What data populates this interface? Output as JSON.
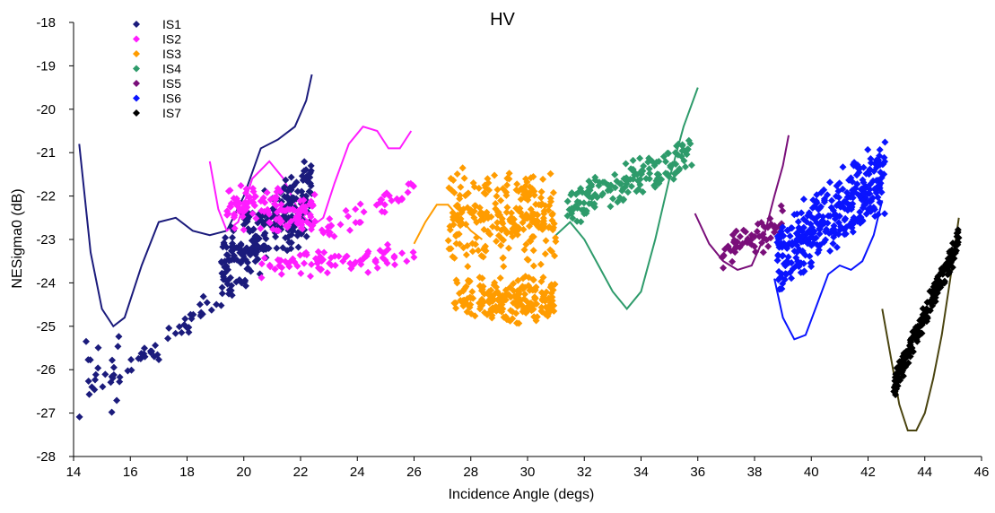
{
  "chart_data": {
    "type": "scatter",
    "title": "HV",
    "xlabel": "Incidence Angle (degs)",
    "ylabel": "NESigma0 (dB)",
    "xlim": [
      14,
      46
    ],
    "ylim": [
      -28,
      -18
    ],
    "xticks": [
      14,
      16,
      18,
      20,
      22,
      24,
      26,
      28,
      30,
      32,
      34,
      36,
      38,
      40,
      42,
      44,
      46
    ],
    "yticks": [
      -18,
      -19,
      -20,
      -21,
      -22,
      -23,
      -24,
      -25,
      -26,
      -27,
      -28
    ],
    "grid": false,
    "legend_position": "top-left",
    "series": [
      {
        "name": "IS1",
        "color": "#1b1b7c",
        "marker": "diamond",
        "clusters": [
          {
            "x": [
              14.2,
              15.6
            ],
            "y_center": [
              -26.4,
              -25.8
            ],
            "y_spread": 1.6,
            "n": 24
          },
          {
            "x": [
              15.6,
              19.2
            ],
            "y_center": [
              -26.2,
              -24.3
            ],
            "y_spread": 0.4,
            "n": 40
          },
          {
            "x": [
              19.2,
              22.4
            ],
            "y_center": [
              -23.6,
              -22.0
            ],
            "y_spread": 1.0,
            "n": 260
          }
        ],
        "curve": {
          "color": "#1b1b7c",
          "x": [
            14.2,
            14.6,
            15.0,
            15.4,
            15.8,
            16.4,
            17.0,
            17.6,
            18.2,
            18.8,
            19.4,
            20.0,
            20.6,
            21.2,
            21.8,
            22.2,
            22.4
          ],
          "y": [
            -20.8,
            -23.3,
            -24.6,
            -25.0,
            -24.8,
            -23.6,
            -22.6,
            -22.5,
            -22.8,
            -22.9,
            -22.8,
            -22.0,
            -20.9,
            -20.7,
            -20.4,
            -19.8,
            -19.2
          ]
        }
      },
      {
        "name": "IS2",
        "color": "#ff1dff",
        "marker": "diamond",
        "clusters": [
          {
            "x": [
              19.4,
              22.6
            ],
            "y_center": [
              -22.2,
              -22.4
            ],
            "y_spread": 0.6,
            "n": 120
          },
          {
            "x": [
              20.6,
              26.0
            ],
            "y_center": [
              -23.6,
              -23.4
            ],
            "y_spread": 0.35,
            "n": 80
          },
          {
            "x": [
              22.6,
              26.0
            ],
            "y_center": [
              -22.9,
              -21.8
            ],
            "y_spread": 0.3,
            "n": 40
          }
        ],
        "curve": {
          "color": "#ff1dff",
          "x": [
            18.8,
            19.1,
            19.4,
            19.8,
            20.3,
            20.9,
            21.4,
            21.9,
            22.4,
            22.8,
            23.2,
            23.7,
            24.2,
            24.7,
            25.1,
            25.5,
            25.9
          ],
          "y": [
            -21.2,
            -22.3,
            -22.8,
            -22.6,
            -21.6,
            -21.2,
            -21.6,
            -22.3,
            -22.7,
            -22.5,
            -21.7,
            -20.8,
            -20.4,
            -20.5,
            -20.9,
            -20.9,
            -20.5
          ]
        }
      },
      {
        "name": "IS3",
        "color": "#ff9c00",
        "marker": "diamond",
        "clusters": [
          {
            "x": [
              27.2,
              31.0
            ],
            "y_center": [
              -22.5,
              -22.5
            ],
            "y_spread": 1.2,
            "n": 250
          },
          {
            "x": [
              27.4,
              31.0
            ],
            "y_center": [
              -24.4,
              -24.4
            ],
            "y_spread": 0.6,
            "n": 200
          }
        ],
        "curve": {
          "color": "#ff9c00",
          "x": [
            26.0,
            26.4,
            26.8,
            27.2,
            27.6,
            28.0,
            28.4
          ],
          "y": [
            -23.1,
            -22.6,
            -22.2,
            -22.2,
            -22.5,
            -22.8,
            -23.0
          ]
        }
      },
      {
        "name": "IS4",
        "color": "#2e9b6b",
        "marker": "diamond",
        "clusters": [
          {
            "x": [
              31.4,
              35.8
            ],
            "y_center": [
              -22.3,
              -21.0
            ],
            "y_spread": 0.5,
            "n": 160
          }
        ],
        "curve": {
          "color": "#2e9b6b",
          "x": [
            31.0,
            31.5,
            32.0,
            32.5,
            33.0,
            33.5,
            34.0,
            34.5,
            35.0,
            35.5,
            36.0
          ],
          "y": [
            -22.9,
            -22.6,
            -23.0,
            -23.6,
            -24.2,
            -24.6,
            -24.2,
            -23.0,
            -21.6,
            -20.4,
            -19.5
          ]
        }
      },
      {
        "name": "IS5",
        "color": "#7a0f7a",
        "marker": "diamond",
        "clusters": [
          {
            "x": [
              36.8,
              39.0
            ],
            "y_center": [
              -23.4,
              -22.6
            ],
            "y_spread": 0.5,
            "n": 60
          }
        ],
        "curve": {
          "color": "#7a0f7a",
          "x": [
            35.9,
            36.4,
            36.9,
            37.4,
            37.9,
            38.3,
            38.7,
            39.0,
            39.2
          ],
          "y": [
            -22.4,
            -23.1,
            -23.5,
            -23.7,
            -23.6,
            -23.0,
            -22.0,
            -21.3,
            -20.6
          ]
        }
      },
      {
        "name": "IS6",
        "color": "#0a14ff",
        "marker": "diamond",
        "clusters": [
          {
            "x": [
              38.8,
              42.6
            ],
            "y_center": [
              -23.4,
              -21.5
            ],
            "y_spread": 1.0,
            "n": 330
          }
        ],
        "curve": {
          "color": "#0a14ff",
          "x": [
            38.7,
            39.0,
            39.4,
            39.8,
            40.2,
            40.6,
            41.0,
            41.4,
            41.8,
            42.2,
            42.5
          ],
          "y": [
            -23.9,
            -24.8,
            -25.3,
            -25.2,
            -24.5,
            -23.8,
            -23.6,
            -23.7,
            -23.5,
            -22.9,
            -22.1
          ]
        }
      },
      {
        "name": "IS7",
        "color": "#000000",
        "marker": "diamond",
        "clusters": [
          {
            "x": [
              42.9,
              45.2
            ],
            "y_center": [
              -26.4,
              -23.0
            ],
            "y_spread": 0.35,
            "n": 200
          }
        ],
        "curve": {
          "color": "#4a4410",
          "x": [
            42.5,
            42.8,
            43.1,
            43.4,
            43.7,
            44.0,
            44.3,
            44.6,
            44.9,
            45.2
          ],
          "y": [
            -24.6,
            -25.7,
            -26.8,
            -27.4,
            -27.4,
            -27.0,
            -26.2,
            -25.2,
            -23.9,
            -22.5
          ]
        }
      }
    ]
  }
}
